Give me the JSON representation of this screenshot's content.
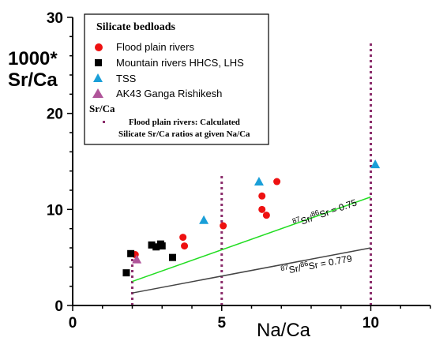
{
  "chart_data": {
    "type": "scatter",
    "ylabel_line1": "1000*",
    "ylabel_line2": "Sr/Ca",
    "xlabel": "Na/Ca",
    "xlim": [
      0,
      12
    ],
    "ylim": [
      0,
      30
    ],
    "x_ticks": [
      0,
      5,
      10
    ],
    "y_ticks": [
      0,
      10,
      20,
      30
    ],
    "legend": {
      "title": "Silicate bedloads",
      "entries": [
        {
          "label": "Flood plain rivers",
          "marker": "circle",
          "color": "#ee1111"
        },
        {
          "label": "Mountain rivers HHCS, LHS",
          "marker": "square",
          "color": "#000000"
        },
        {
          "label": "TSS",
          "marker": "triangle",
          "color": "#1a9fd8"
        },
        {
          "label": "AK43 Ganga Rishikesh",
          "marker": "triangle",
          "color": "#b0559a"
        }
      ],
      "subtitle": "Sr/Ca",
      "note_line1": "Flood plain rivers: Calculated",
      "note_line2": "Silicate Sr/Ca ratios at given Na/Ca",
      "note_color": "#8b2d6b"
    },
    "series": [
      {
        "marker": "circle",
        "color": "#ee1111",
        "points": [
          [
            2.1,
            5.3
          ],
          [
            3.7,
            7.1
          ],
          [
            3.75,
            6.2
          ],
          [
            5.05,
            8.3
          ],
          [
            6.35,
            11.4
          ],
          [
            6.35,
            10.0
          ],
          [
            6.5,
            9.4
          ],
          [
            6.85,
            12.9
          ]
        ]
      },
      {
        "marker": "square",
        "color": "#000000",
        "points": [
          [
            1.8,
            3.4
          ],
          [
            1.95,
            5.4
          ],
          [
            2.65,
            6.3
          ],
          [
            2.8,
            6.1
          ],
          [
            2.95,
            6.4
          ],
          [
            3.0,
            6.2
          ],
          [
            3.35,
            5.0
          ]
        ]
      },
      {
        "marker": "triangle",
        "color": "#1a9fd8",
        "points": [
          [
            4.4,
            8.9
          ],
          [
            6.25,
            12.9
          ],
          [
            10.15,
            14.7
          ]
        ]
      },
      {
        "marker": "triangle",
        "color": "#b0559a",
        "points": [
          [
            2.15,
            4.8
          ]
        ]
      }
    ],
    "lines": [
      {
        "color": "#22dd22",
        "x": [
          2.0,
          10.0
        ],
        "y": [
          2.5,
          11.3
        ],
        "label_pre": "87",
        "label_mid": "Sr/",
        "label_sup2": "86",
        "label_post": "Sr = 0.75",
        "label_x": 8.5,
        "label_y": 9.3
      },
      {
        "color": "#444444",
        "x": [
          2.0,
          10.0
        ],
        "y": [
          1.3,
          6.0
        ],
        "label_pre": "87",
        "label_mid": "Sr/",
        "label_sup2": "86",
        "label_post": "Sr = 0.779",
        "label_x": 8.2,
        "label_y": 3.9
      }
    ],
    "vertical_dotted_lines": [
      {
        "x": 2.0,
        "y_top": 5.0
      },
      {
        "x": 5.0,
        "y_top": 13.7
      },
      {
        "x": 10.0,
        "y_top": 27.5
      }
    ],
    "dotted_color": "#8b2d6b"
  }
}
